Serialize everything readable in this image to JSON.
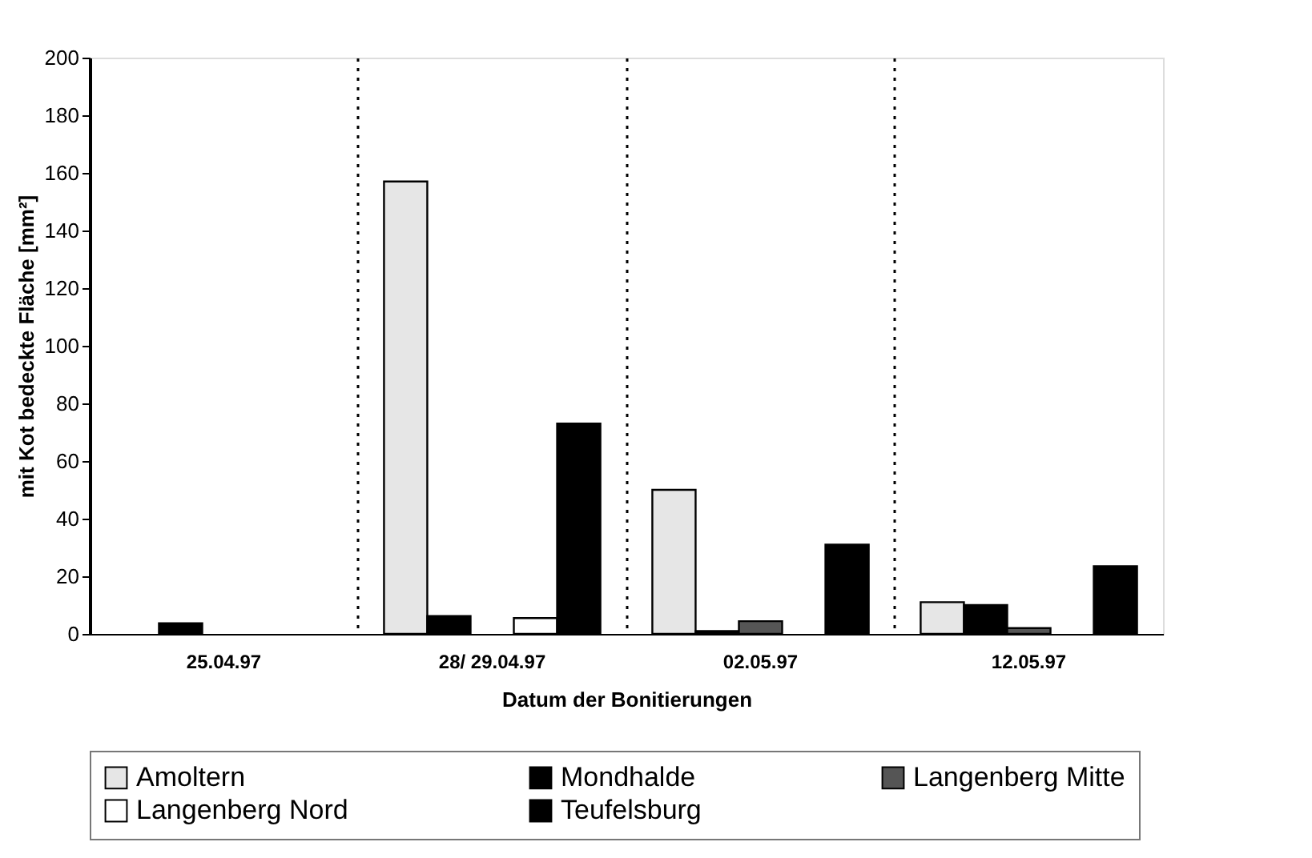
{
  "chart_data": {
    "type": "bar",
    "xlabel": "Datum der Bonitierungen",
    "ylabel": "mit Kot bedeckte Fläche [mm²]",
    "categories": [
      "25.04.97",
      "28/ 29.04.97",
      "02.05.97",
      "12.05.97"
    ],
    "series": [
      {
        "name": "Amoltern",
        "color": "#e6e6e6",
        "values": [
          0,
          157,
          50,
          11
        ]
      },
      {
        "name": "Mondhalde",
        "color": "#000000",
        "values": [
          3.7,
          6.2,
          1,
          10
        ]
      },
      {
        "name": "Langenberg Mitte",
        "color": "#555555",
        "values": [
          0,
          0,
          4.4,
          2
        ]
      },
      {
        "name": "Langenberg Nord",
        "color": "#ffffff",
        "values": [
          0,
          5.5,
          0,
          0
        ]
      },
      {
        "name": "Teufelsburg",
        "color": "#000000",
        "values": [
          0,
          73,
          31,
          23.5
        ]
      }
    ],
    "ylim": [
      0,
      200
    ],
    "yticks": [
      0,
      20,
      40,
      60,
      80,
      100,
      120,
      140,
      160,
      180,
      200
    ],
    "grid": "x",
    "legend": "bottom"
  }
}
